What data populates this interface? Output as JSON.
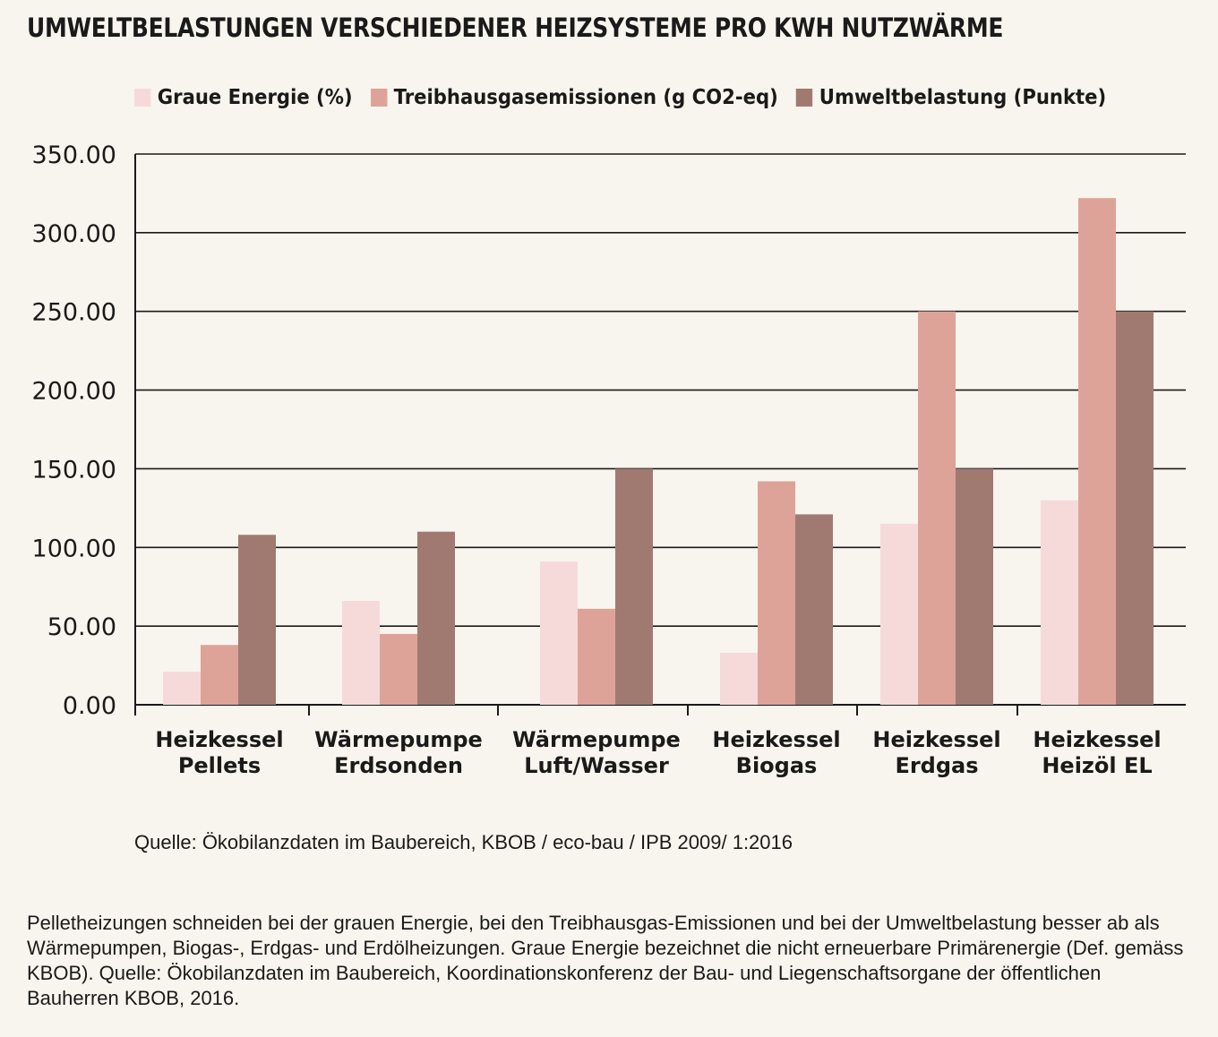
{
  "title": "UMWELTBELASTUNGEN VERSCHIEDENER HEIZSYSTEME PRO KWH NUTZWÄRME",
  "colors": {
    "graue_energie": "#f6dada",
    "treibhausgas": "#dea398",
    "umweltbelastung": "#a07a71",
    "background": "#f8f5ee",
    "axis": "#1a1a1a"
  },
  "chart_data": {
    "type": "bar",
    "title": "UMWELTBELASTUNGEN VERSCHIEDENER HEIZSYSTEME PRO KWH NUTZWÄRME",
    "categories": [
      [
        "Heizkessel",
        "Pellets"
      ],
      [
        "Wärmepumpe",
        "Erdsonden"
      ],
      [
        "Wärmepumpe",
        "Luft/Wasser"
      ],
      [
        "Heizkessel",
        "Biogas"
      ],
      [
        "Heizkessel",
        "Erdgas"
      ],
      [
        "Heizkessel",
        "Heizöl EL"
      ]
    ],
    "series": [
      {
        "name": "Graue Energie (%)",
        "color": "#f6dada",
        "values": [
          21,
          66,
          91,
          33,
          115,
          130
        ]
      },
      {
        "name": "Treibhausgasemissionen (g CO2-eq)",
        "color": "#dea398",
        "values": [
          38,
          45,
          61,
          142,
          250,
          322
        ]
      },
      {
        "name": "Umweltbelastung (Punkte)",
        "color": "#a07a71",
        "values": [
          108,
          110,
          150,
          121,
          150,
          250
        ]
      }
    ],
    "xlabel": "",
    "ylabel": "",
    "ylim": [
      0,
      350
    ],
    "yticks": [
      "0.00",
      "50.00",
      "100.00",
      "150.00",
      "200.00",
      "250.00",
      "300.00",
      "350.00"
    ],
    "grid": true,
    "legend": "top"
  },
  "source": "Quelle: Ökobilanzdaten im Baubereich, KBOB / eco-bau / IPB 2009/ 1:2016",
  "caption": "Pelletheizungen schneiden bei der grauen Energie, bei den Treibhausgas-Emissionen und bei der Umweltbelastung besser ab als Wärmepumpen, Biogas-, Erdgas- und Erdölheizungen. Graue Energie bezeichnet die nicht erneuerbare Primärenergie (Def. gemäss KBOB). Quelle: Ökobilanzdaten im Baubereich, Koordinationskonferenz der Bau- und Liegenschaftsorgane der öffentlichen Bauherren KBOB, 2016."
}
